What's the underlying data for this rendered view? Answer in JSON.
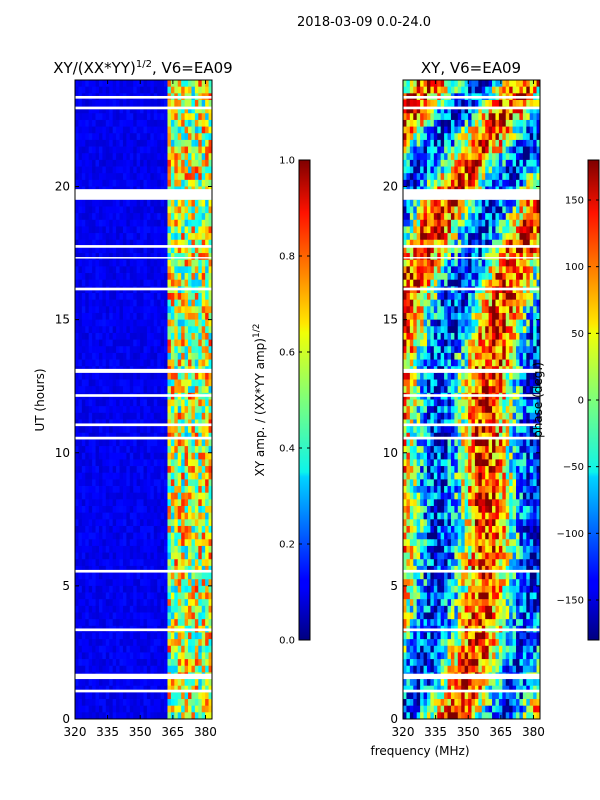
{
  "figure": {
    "suptitle": "2018-03-09 0.0-24.0",
    "xlabel_shared": "frequency (MHz)"
  },
  "chart_data": [
    {
      "type": "heatmap",
      "title": "XY/(XX*YY)",
      "title_exponent": "1/2",
      "title_suffix": ", V6=EA09",
      "xlabel": "frequency (MHz)",
      "ylabel": "UT (hours)",
      "xlim": [
        320,
        383
      ],
      "ylim": [
        0,
        24
      ],
      "xticks": [
        320,
        335,
        350,
        365,
        380
      ],
      "yticks": [
        0,
        5,
        10,
        15,
        20
      ],
      "colorbar": {
        "label": "XY amp. / (XX*YY amp)",
        "label_exponent": "1/2",
        "range": [
          0.0,
          1.0
        ],
        "ticks": [
          "0.0",
          "0.2",
          "0.4",
          "0.6",
          "0.8",
          "1.0"
        ],
        "tick_values": [
          0.0,
          0.2,
          0.4,
          0.6,
          0.8,
          1.0
        ]
      },
      "blank_time_rows_hours": [
        [
          19.5,
          19.9
        ],
        [
          17.7,
          17.8
        ],
        [
          17.3,
          17.35
        ],
        [
          16.1,
          16.2
        ],
        [
          13.0,
          13.15
        ],
        [
          12.1,
          12.2
        ],
        [
          11.0,
          11.1
        ],
        [
          10.5,
          10.6
        ],
        [
          5.5,
          5.6
        ],
        [
          3.3,
          3.4
        ],
        [
          1.5,
          1.7
        ],
        [
          1.0,
          1.1
        ],
        [
          23.3,
          23.4
        ],
        [
          22.9,
          23.0
        ]
      ],
      "high_amplitude_band_mhz": [
        363,
        383
      ]
    },
    {
      "type": "heatmap",
      "title": "XY, V6=EA09",
      "xlabel": "frequency (MHz)",
      "ylabel": "",
      "xlim": [
        320,
        383
      ],
      "ylim": [
        0,
        24
      ],
      "xticks": [
        320,
        335,
        350,
        365,
        380
      ],
      "yticks": [
        0,
        5,
        10,
        15,
        20
      ],
      "colorbar": {
        "label": "phase (deg.)",
        "range": [
          -180,
          180
        ],
        "ticks": [
          "−150",
          "−100",
          "−50",
          "0",
          "50",
          "100",
          "150"
        ],
        "tick_values": [
          -150,
          -100,
          -50,
          0,
          50,
          100,
          150
        ]
      },
      "blank_time_rows_hours": [
        [
          19.5,
          19.9
        ],
        [
          17.7,
          17.8
        ],
        [
          17.3,
          17.35
        ],
        [
          16.1,
          16.2
        ],
        [
          13.0,
          13.15
        ],
        [
          12.1,
          12.2
        ],
        [
          11.0,
          11.1
        ],
        [
          10.5,
          10.6
        ],
        [
          5.5,
          5.6
        ],
        [
          3.3,
          3.4
        ],
        [
          1.5,
          1.7
        ],
        [
          1.0,
          1.1
        ],
        [
          23.3,
          23.4
        ],
        [
          22.9,
          23.0
        ]
      ]
    }
  ]
}
